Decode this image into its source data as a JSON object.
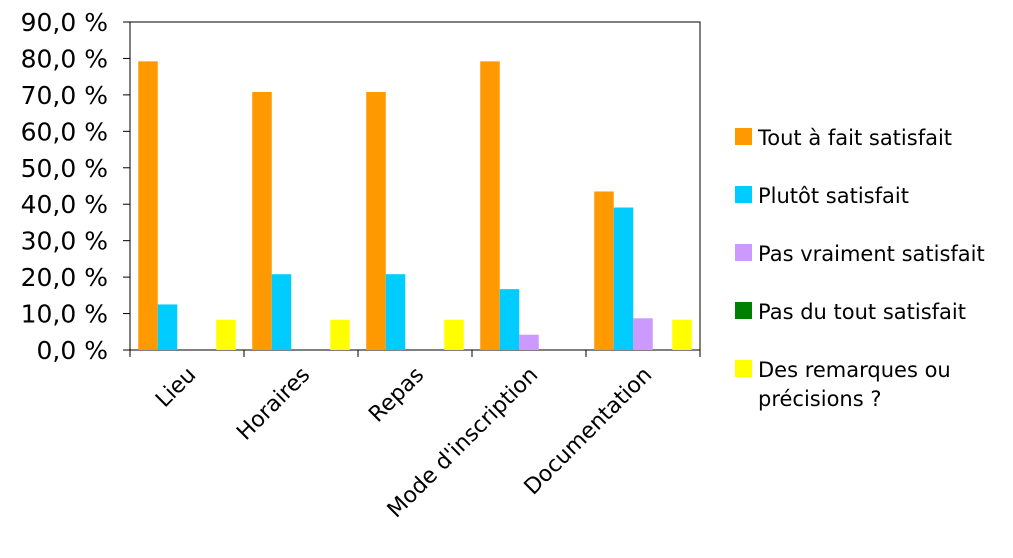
{
  "chart_data": {
    "type": "bar",
    "categories": [
      "Lieu",
      "Horaires",
      "Repas",
      "Mode d'inscription",
      "Documentation"
    ],
    "series": [
      {
        "name": "Tout à fait satisfait",
        "color": "#ff9900",
        "values": [
          79.2,
          70.8,
          70.8,
          79.2,
          43.5
        ]
      },
      {
        "name": "Plutôt satisfait",
        "color": "#00ccff",
        "values": [
          12.5,
          20.8,
          20.8,
          16.7,
          39.1
        ]
      },
      {
        "name": "Pas vraiment satisfait",
        "color": "#cc99ff",
        "values": [
          0,
          0,
          0,
          4.2,
          8.7
        ]
      },
      {
        "name": "Pas du tout satisfait",
        "color": "#008000",
        "values": [
          0,
          0,
          0,
          0,
          0
        ]
      },
      {
        "name": "Des remarques ou précisions ?",
        "color": "#ffff00",
        "values": [
          8.3,
          8.3,
          8.3,
          0,
          8.3
        ]
      }
    ],
    "yticks": [
      "0,0 %",
      "10,0 %",
      "20,0 %",
      "30,0 %",
      "40,0 %",
      "50,0 %",
      "60,0 %",
      "70,0 %",
      "80,0 %",
      "90,0 %"
    ],
    "ylim": [
      0,
      90
    ],
    "grid": false,
    "legend_position": "right",
    "title": "",
    "xlabel": "",
    "ylabel": ""
  }
}
